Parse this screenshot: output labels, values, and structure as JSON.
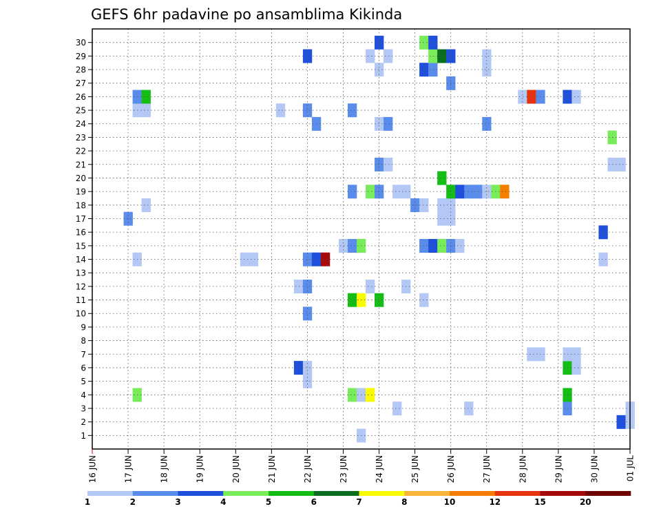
{
  "chart_data": {
    "type": "heatmap",
    "title": "GEFS 6hr padavine po ansamblima Kikinda",
    "xlabel": "",
    "ylabel": "",
    "x_ticks": [
      "16 JUN",
      "17 JUN",
      "18 JUN",
      "19 JUN",
      "20 JUN",
      "21 JUN",
      "22 JUN",
      "23 JUN",
      "24 JUN",
      "25 JUN",
      "26 JUN",
      "27 JUN",
      "28 JUN",
      "29 JUN",
      "30 JUN",
      "01 JUL"
    ],
    "y_ticks": [
      "1",
      "2",
      "3",
      "4",
      "5",
      "6",
      "7",
      "8",
      "9",
      "10",
      "11",
      "12",
      "13",
      "14",
      "15",
      "16",
      "17",
      "18",
      "19",
      "20",
      "21",
      "22",
      "23",
      "24",
      "25",
      "26",
      "27",
      "28",
      "29",
      "30"
    ],
    "x_range_hours": [
      0,
      360
    ],
    "time_step_hours": 6,
    "grid": true,
    "legend_position": "bottom",
    "color_levels": [
      {
        "label": "1",
        "color": "#b4c8f5"
      },
      {
        "label": "2",
        "color": "#5a8cec"
      },
      {
        "label": "3",
        "color": "#1e50dc"
      },
      {
        "label": "4",
        "color": "#78ec5a"
      },
      {
        "label": "5",
        "color": "#14be14"
      },
      {
        "label": "6",
        "color": "#0a6e1e"
      },
      {
        "label": "7",
        "color": "#fafa00"
      },
      {
        "label": "8",
        "color": "#fab43c"
      },
      {
        "label": "10",
        "color": "#f57d00"
      },
      {
        "label": "12",
        "color": "#e6320f"
      },
      {
        "label": "15",
        "color": "#a50a0a"
      },
      {
        "label": "20",
        "color": "#6e0000"
      }
    ],
    "cells": [
      {
        "member": 1,
        "hour": 180,
        "level": 0
      },
      {
        "member": 2,
        "hour": 354,
        "level": 2
      },
      {
        "member": 2,
        "hour": 360,
        "level": 0
      },
      {
        "member": 3,
        "hour": 204,
        "level": 0
      },
      {
        "member": 3,
        "hour": 252,
        "level": 0
      },
      {
        "member": 3,
        "hour": 318,
        "level": 1
      },
      {
        "member": 3,
        "hour": 360,
        "level": 0
      },
      {
        "member": 4,
        "hour": 30,
        "level": 3
      },
      {
        "member": 4,
        "hour": 174,
        "level": 3
      },
      {
        "member": 4,
        "hour": 180,
        "level": 0
      },
      {
        "member": 4,
        "hour": 186,
        "level": 6
      },
      {
        "member": 4,
        "hour": 318,
        "level": 4
      },
      {
        "member": 5,
        "hour": 144,
        "level": 0
      },
      {
        "member": 6,
        "hour": 138,
        "level": 2
      },
      {
        "member": 6,
        "hour": 144,
        "level": 0
      },
      {
        "member": 6,
        "hour": 318,
        "level": 4
      },
      {
        "member": 6,
        "hour": 324,
        "level": 0
      },
      {
        "member": 7,
        "hour": 294,
        "level": 0
      },
      {
        "member": 7,
        "hour": 300,
        "level": 0
      },
      {
        "member": 7,
        "hour": 318,
        "level": 0
      },
      {
        "member": 7,
        "hour": 324,
        "level": 0
      },
      {
        "member": 10,
        "hour": 144,
        "level": 1
      },
      {
        "member": 11,
        "hour": 174,
        "level": 4
      },
      {
        "member": 11,
        "hour": 180,
        "level": 6
      },
      {
        "member": 11,
        "hour": 192,
        "level": 4
      },
      {
        "member": 11,
        "hour": 222,
        "level": 0
      },
      {
        "member": 12,
        "hour": 138,
        "level": 0
      },
      {
        "member": 12,
        "hour": 144,
        "level": 1
      },
      {
        "member": 12,
        "hour": 186,
        "level": 0
      },
      {
        "member": 12,
        "hour": 210,
        "level": 0
      },
      {
        "member": 14,
        "hour": 30,
        "level": 0
      },
      {
        "member": 14,
        "hour": 102,
        "level": 0
      },
      {
        "member": 14,
        "hour": 108,
        "level": 0
      },
      {
        "member": 14,
        "hour": 144,
        "level": 1
      },
      {
        "member": 14,
        "hour": 150,
        "level": 2
      },
      {
        "member": 14,
        "hour": 156,
        "level": 10
      },
      {
        "member": 14,
        "hour": 342,
        "level": 0
      },
      {
        "member": 15,
        "hour": 168,
        "level": 0
      },
      {
        "member": 15,
        "hour": 174,
        "level": 1
      },
      {
        "member": 15,
        "hour": 180,
        "level": 3
      },
      {
        "member": 15,
        "hour": 222,
        "level": 1
      },
      {
        "member": 15,
        "hour": 228,
        "level": 2
      },
      {
        "member": 15,
        "hour": 234,
        "level": 3
      },
      {
        "member": 15,
        "hour": 240,
        "level": 1
      },
      {
        "member": 15,
        "hour": 246,
        "level": 0
      },
      {
        "member": 16,
        "hour": 342,
        "level": 2
      },
      {
        "member": 17,
        "hour": 24,
        "level": 1
      },
      {
        "member": 17,
        "hour": 234,
        "level": 0
      },
      {
        "member": 17,
        "hour": 240,
        "level": 0
      },
      {
        "member": 18,
        "hour": 36,
        "level": 0
      },
      {
        "member": 18,
        "hour": 216,
        "level": 1
      },
      {
        "member": 18,
        "hour": 222,
        "level": 0
      },
      {
        "member": 18,
        "hour": 234,
        "level": 0
      },
      {
        "member": 18,
        "hour": 240,
        "level": 0
      },
      {
        "member": 19,
        "hour": 174,
        "level": 1
      },
      {
        "member": 19,
        "hour": 186,
        "level": 3
      },
      {
        "member": 19,
        "hour": 192,
        "level": 1
      },
      {
        "member": 19,
        "hour": 204,
        "level": 0
      },
      {
        "member": 19,
        "hour": 210,
        "level": 0
      },
      {
        "member": 19,
        "hour": 240,
        "level": 4
      },
      {
        "member": 19,
        "hour": 246,
        "level": 2
      },
      {
        "member": 19,
        "hour": 252,
        "level": 1
      },
      {
        "member": 19,
        "hour": 258,
        "level": 1
      },
      {
        "member": 19,
        "hour": 264,
        "level": 0
      },
      {
        "member": 19,
        "hour": 270,
        "level": 3
      },
      {
        "member": 19,
        "hour": 276,
        "level": 8
      },
      {
        "member": 20,
        "hour": 234,
        "level": 4
      },
      {
        "member": 21,
        "hour": 192,
        "level": 1
      },
      {
        "member": 21,
        "hour": 198,
        "level": 0
      },
      {
        "member": 21,
        "hour": 348,
        "level": 0
      },
      {
        "member": 21,
        "hour": 354,
        "level": 0
      },
      {
        "member": 23,
        "hour": 348,
        "level": 3
      },
      {
        "member": 24,
        "hour": 150,
        "level": 1
      },
      {
        "member": 24,
        "hour": 192,
        "level": 0
      },
      {
        "member": 24,
        "hour": 198,
        "level": 1
      },
      {
        "member": 24,
        "hour": 264,
        "level": 1
      },
      {
        "member": 25,
        "hour": 30,
        "level": 0
      },
      {
        "member": 25,
        "hour": 36,
        "level": 0
      },
      {
        "member": 25,
        "hour": 126,
        "level": 0
      },
      {
        "member": 25,
        "hour": 144,
        "level": 1
      },
      {
        "member": 25,
        "hour": 174,
        "level": 1
      },
      {
        "member": 26,
        "hour": 30,
        "level": 1
      },
      {
        "member": 26,
        "hour": 36,
        "level": 4
      },
      {
        "member": 26,
        "hour": 288,
        "level": 0
      },
      {
        "member": 26,
        "hour": 294,
        "level": 9
      },
      {
        "member": 26,
        "hour": 300,
        "level": 1
      },
      {
        "member": 26,
        "hour": 318,
        "level": 2
      },
      {
        "member": 26,
        "hour": 324,
        "level": 0
      },
      {
        "member": 27,
        "hour": 240,
        "level": 1
      },
      {
        "member": 28,
        "hour": 192,
        "level": 0
      },
      {
        "member": 28,
        "hour": 222,
        "level": 2
      },
      {
        "member": 28,
        "hour": 228,
        "level": 1
      },
      {
        "member": 28,
        "hour": 264,
        "level": 0
      },
      {
        "member": 29,
        "hour": 144,
        "level": 2
      },
      {
        "member": 29,
        "hour": 186,
        "level": 0
      },
      {
        "member": 29,
        "hour": 198,
        "level": 0
      },
      {
        "member": 29,
        "hour": 228,
        "level": 3
      },
      {
        "member": 29,
        "hour": 234,
        "level": 5
      },
      {
        "member": 29,
        "hour": 240,
        "level": 2
      },
      {
        "member": 29,
        "hour": 264,
        "level": 0
      },
      {
        "member": 30,
        "hour": 192,
        "level": 2
      },
      {
        "member": 30,
        "hour": 222,
        "level": 3
      },
      {
        "member": 30,
        "hour": 228,
        "level": 2
      }
    ]
  }
}
